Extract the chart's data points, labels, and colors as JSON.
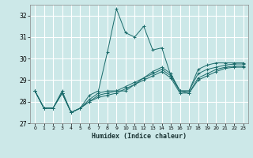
{
  "xlabel": "Humidex (Indice chaleur)",
  "ylabel": "",
  "background_color": "#cce8e8",
  "grid_color": "#ffffff",
  "line_color": "#1a6b6b",
  "xlim": [
    -0.5,
    23.5
  ],
  "ylim": [
    27,
    32.5
  ],
  "yticks": [
    27,
    28,
    29,
    30,
    31,
    32
  ],
  "xticks": [
    0,
    1,
    2,
    3,
    4,
    5,
    6,
    7,
    8,
    9,
    10,
    11,
    12,
    13,
    14,
    15,
    16,
    17,
    18,
    19,
    20,
    21,
    22,
    23
  ],
  "lines": [
    [
      28.5,
      27.7,
      27.7,
      28.5,
      27.5,
      27.7,
      28.3,
      28.5,
      30.3,
      32.3,
      31.2,
      31.0,
      31.5,
      30.4,
      30.5,
      29.2,
      28.5,
      28.5,
      29.5,
      29.7,
      29.8,
      29.8,
      29.8,
      29.8
    ],
    [
      28.5,
      27.7,
      27.7,
      28.4,
      27.5,
      27.7,
      28.1,
      28.4,
      28.5,
      28.5,
      28.5,
      28.8,
      29.1,
      29.4,
      29.6,
      29.3,
      28.5,
      28.5,
      29.3,
      29.5,
      29.6,
      29.7,
      29.75,
      29.75
    ],
    [
      28.5,
      27.7,
      27.7,
      28.4,
      27.5,
      27.7,
      28.0,
      28.3,
      28.4,
      28.5,
      28.7,
      28.9,
      29.1,
      29.3,
      29.5,
      29.2,
      28.5,
      28.4,
      29.1,
      29.3,
      29.5,
      29.6,
      29.65,
      29.65
    ],
    [
      28.5,
      27.7,
      27.7,
      28.4,
      27.5,
      27.7,
      28.0,
      28.2,
      28.3,
      28.4,
      28.6,
      28.8,
      29.0,
      29.2,
      29.4,
      29.1,
      28.4,
      28.4,
      29.0,
      29.2,
      29.4,
      29.55,
      29.6,
      29.6
    ]
  ]
}
